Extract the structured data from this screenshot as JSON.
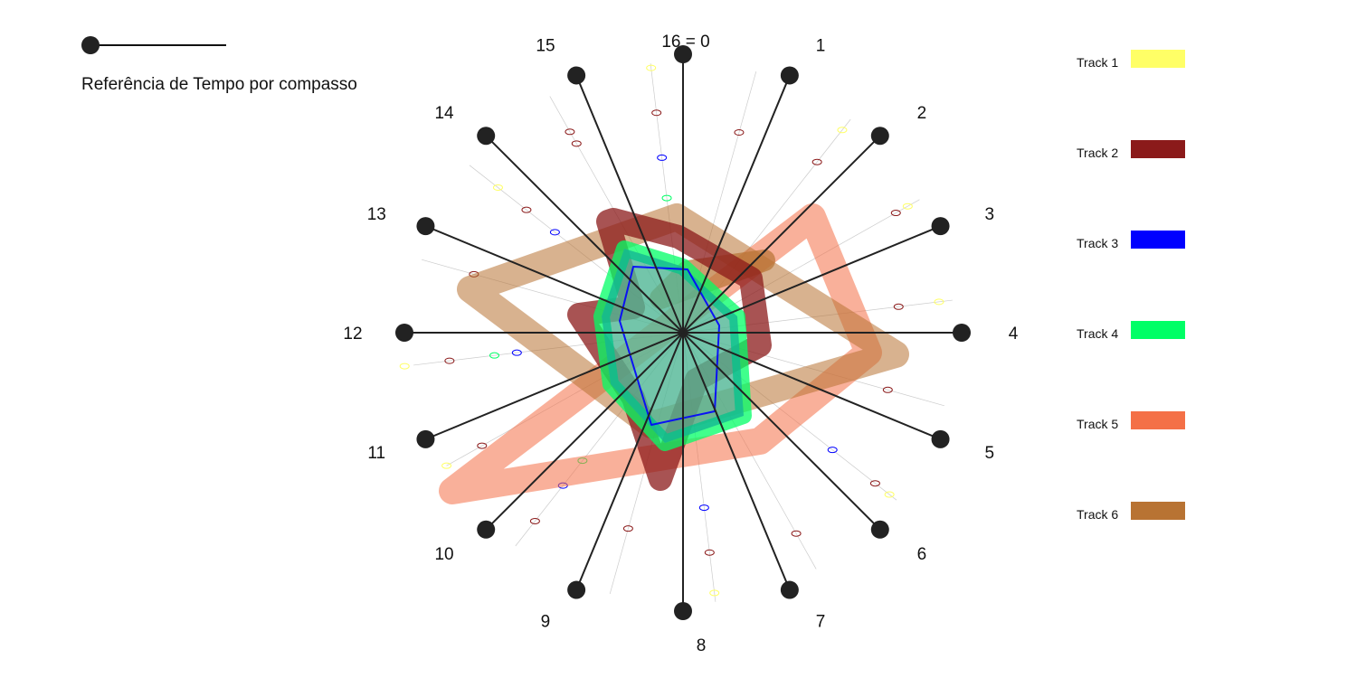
{
  "reference": {
    "caption": "Referência de Tempo por compasso"
  },
  "beat_labels": [
    "16 = 0",
    "1",
    "2",
    "3",
    "4",
    "5",
    "6",
    "7",
    "8",
    "9",
    "10",
    "11",
    "12",
    "13",
    "14",
    "15"
  ],
  "tracks": [
    {
      "label": "Track 1",
      "color": "#ffff66"
    },
    {
      "label": "Track 2",
      "color": "#8b1a1a"
    },
    {
      "label": "Track 3",
      "color": "#0000ff"
    },
    {
      "label": "Track 4",
      "color": "#00ff66"
    },
    {
      "label": "Track 5",
      "color": "#f47047"
    },
    {
      "label": "Track 6",
      "color": "#b87333"
    }
  ]
}
